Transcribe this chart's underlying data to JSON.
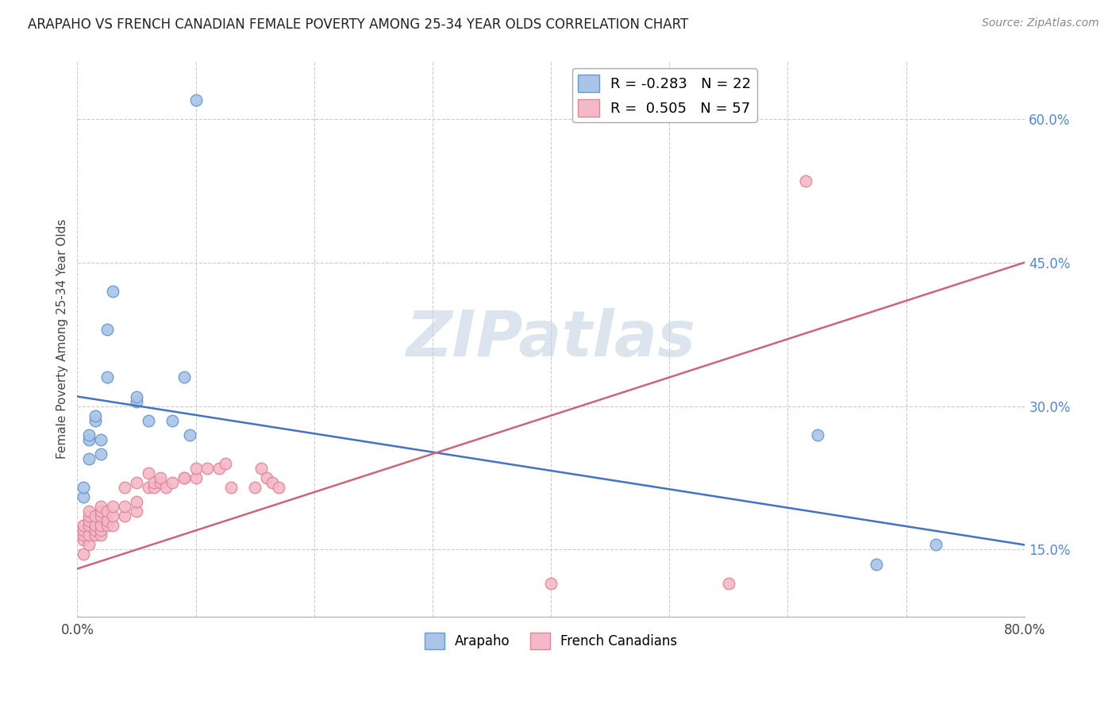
{
  "title": "ARAPAHO VS FRENCH CANADIAN FEMALE POVERTY AMONG 25-34 YEAR OLDS CORRELATION CHART",
  "source": "Source: ZipAtlas.com",
  "ylabel": "Female Poverty Among 25-34 Year Olds",
  "xlim": [
    0.0,
    0.8
  ],
  "ylim": [
    0.08,
    0.66
  ],
  "xticks": [
    0.0,
    0.1,
    0.2,
    0.3,
    0.4,
    0.5,
    0.6,
    0.7,
    0.8
  ],
  "xticklabels": [
    "0.0%",
    "",
    "",
    "",
    "",
    "",
    "",
    "",
    "80.0%"
  ],
  "yticks_right": [
    0.15,
    0.3,
    0.45,
    0.6
  ],
  "ytick_labels_right": [
    "15.0%",
    "30.0%",
    "45.0%",
    "60.0%"
  ],
  "arapaho_color": "#aac4e8",
  "arapaho_edge_color": "#6699cc",
  "french_color": "#f5b8c8",
  "french_edge_color": "#dd8899",
  "line_blue": "#4472c4",
  "line_pink": "#cc6677",
  "legend_R_arapaho": "-0.283",
  "legend_N_arapaho": "22",
  "legend_R_french": "0.505",
  "legend_N_french": "57",
  "watermark": "ZIPatlas",
  "blue_line_y0": 0.31,
  "blue_line_y1": 0.155,
  "pink_line_y0": 0.13,
  "pink_line_y1": 0.45,
  "arapaho_x": [
    0.005,
    0.005,
    0.01,
    0.01,
    0.01,
    0.015,
    0.015,
    0.02,
    0.02,
    0.025,
    0.025,
    0.03,
    0.05,
    0.05,
    0.06,
    0.08,
    0.09,
    0.095,
    0.1,
    0.625,
    0.675,
    0.725
  ],
  "arapaho_y": [
    0.205,
    0.215,
    0.245,
    0.265,
    0.27,
    0.285,
    0.29,
    0.25,
    0.265,
    0.33,
    0.38,
    0.42,
    0.305,
    0.31,
    0.285,
    0.285,
    0.33,
    0.27,
    0.62,
    0.27,
    0.135,
    0.155
  ],
  "french_x": [
    0.005,
    0.005,
    0.005,
    0.005,
    0.005,
    0.01,
    0.01,
    0.01,
    0.01,
    0.01,
    0.01,
    0.015,
    0.015,
    0.015,
    0.015,
    0.02,
    0.02,
    0.02,
    0.02,
    0.02,
    0.02,
    0.025,
    0.025,
    0.025,
    0.03,
    0.03,
    0.03,
    0.04,
    0.04,
    0.04,
    0.05,
    0.05,
    0.05,
    0.06,
    0.06,
    0.065,
    0.065,
    0.07,
    0.07,
    0.075,
    0.08,
    0.09,
    0.09,
    0.1,
    0.1,
    0.11,
    0.12,
    0.125,
    0.13,
    0.15,
    0.155,
    0.16,
    0.165,
    0.17,
    0.4,
    0.55,
    0.615
  ],
  "french_y": [
    0.145,
    0.16,
    0.165,
    0.17,
    0.175,
    0.155,
    0.165,
    0.175,
    0.18,
    0.185,
    0.19,
    0.165,
    0.17,
    0.175,
    0.185,
    0.165,
    0.17,
    0.175,
    0.185,
    0.19,
    0.195,
    0.175,
    0.18,
    0.19,
    0.175,
    0.185,
    0.195,
    0.185,
    0.195,
    0.215,
    0.19,
    0.2,
    0.22,
    0.215,
    0.23,
    0.215,
    0.22,
    0.22,
    0.225,
    0.215,
    0.22,
    0.225,
    0.225,
    0.225,
    0.235,
    0.235,
    0.235,
    0.24,
    0.215,
    0.215,
    0.235,
    0.225,
    0.22,
    0.215,
    0.115,
    0.115,
    0.535
  ]
}
